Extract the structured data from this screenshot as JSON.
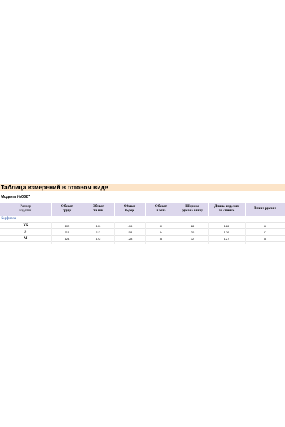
{
  "title": "Таблица измерений в готовом виде",
  "model": "Модель №0327",
  "headers": [
    [
      "Размер",
      "изделия"
    ],
    [
      "Обхват",
      "груди"
    ],
    [
      "Обхват",
      "талии"
    ],
    [
      "Обхват",
      "бедер"
    ],
    [
      "Обхват",
      "плеча"
    ],
    [
      "Ширина",
      "рукава внизу"
    ],
    [
      "Длина изделия",
      "по спинке"
    ],
    [
      "Длина рукава"
    ]
  ],
  "fabric": "Корфилла",
  "rows": [
    {
      "size": "XS",
      "values": [
        "102",
        "100",
        "106",
        "30",
        "28",
        "126",
        "56"
      ]
    },
    {
      "size": "S",
      "values": [
        "114",
        "112",
        "118",
        "34",
        "30",
        "126",
        "57"
      ]
    },
    {
      "size": "M",
      "values": [
        "124",
        "122",
        "128",
        "38",
        "32",
        "127",
        "58"
      ]
    }
  ],
  "colors": {
    "title_bg": "#fce4c8",
    "header_bg": "#dcd7ec",
    "fabric_text": "#2a56a8"
  }
}
